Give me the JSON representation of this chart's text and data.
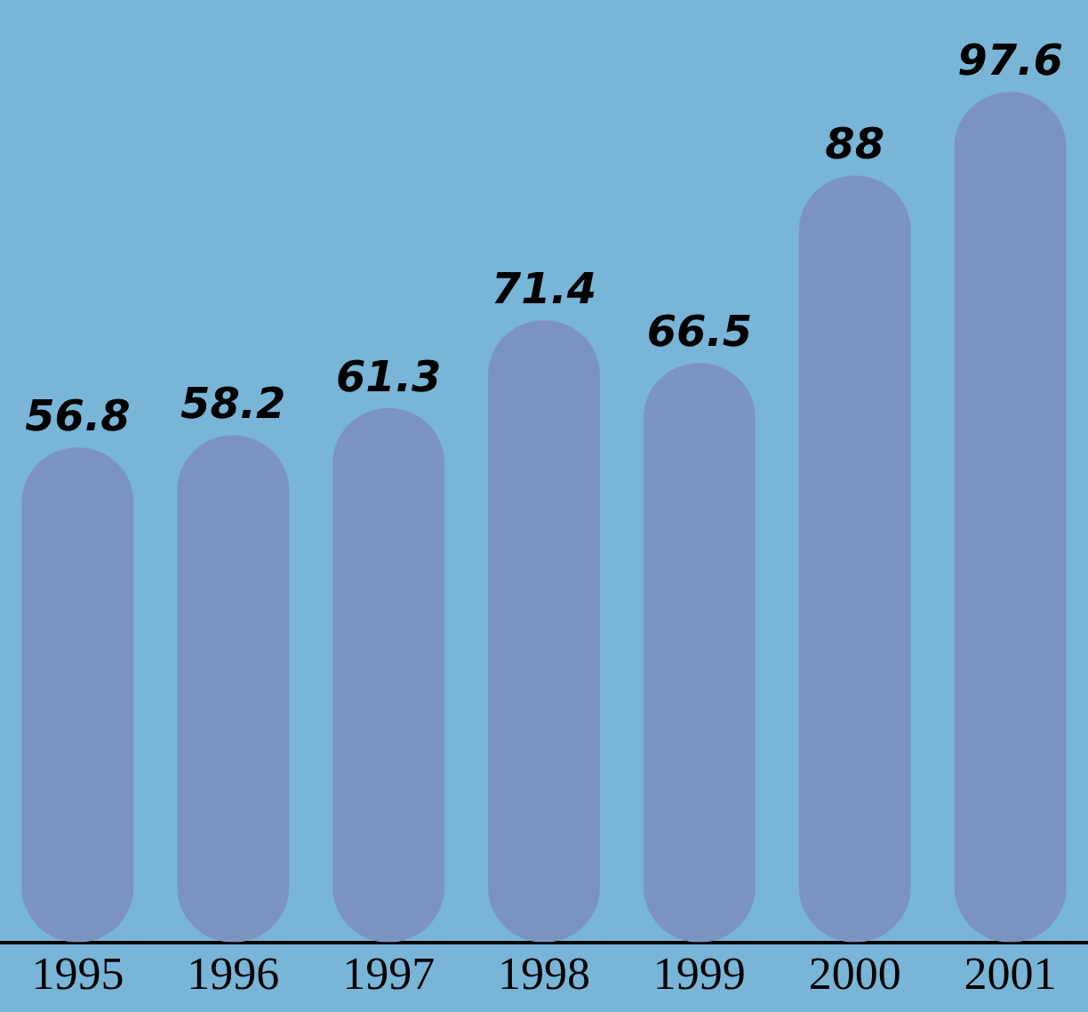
{
  "chart_data": {
    "type": "bar",
    "categories": [
      "1995",
      "1996",
      "1997",
      "1998",
      "1999",
      "2000",
      "2001"
    ],
    "values": [
      56.8,
      58.2,
      61.3,
      71.4,
      66.5,
      88,
      97.6
    ],
    "color": "#7b94bf",
    "data_labels": true,
    "grid": false,
    "legend": false
  }
}
